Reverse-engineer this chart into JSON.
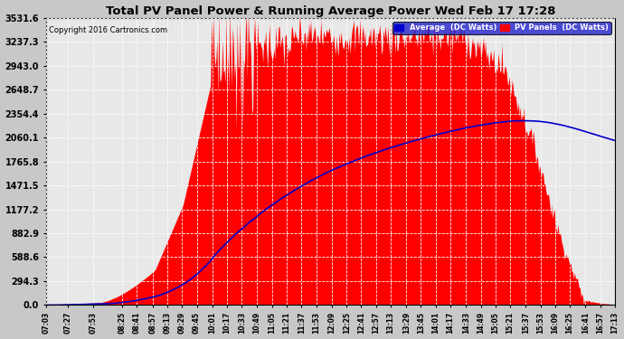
{
  "title": "Total PV Panel Power & Running Average Power Wed Feb 17 17:28",
  "copyright": "Copyright 2016 Cartronics.com",
  "legend_avg": "Average  (DC Watts)",
  "legend_pv": "PV Panels  (DC Watts)",
  "background_color": "#c8c8c8",
  "plot_bg_color": "#e8e8e8",
  "y_ticks": [
    0.0,
    294.3,
    588.6,
    882.9,
    1177.2,
    1471.5,
    1765.8,
    2060.1,
    2354.4,
    2648.7,
    2943.0,
    3237.3,
    3531.6
  ],
  "y_max": 3531.6,
  "pv_color": "#ff0000",
  "avg_color": "#0000cc",
  "grid_color": "#c0c0c0",
  "title_color": "#000000",
  "copyright_color": "#000000",
  "x_tick_labels": [
    "07:03",
    "07:27",
    "07:53",
    "08:25",
    "08:41",
    "08:57",
    "09:13",
    "09:29",
    "09:45",
    "10:01",
    "10:17",
    "10:33",
    "10:49",
    "11:05",
    "11:21",
    "11:37",
    "11:53",
    "12:09",
    "12:25",
    "12:41",
    "12:57",
    "13:13",
    "13:29",
    "13:45",
    "14:01",
    "14:17",
    "14:33",
    "14:49",
    "15:05",
    "15:21",
    "15:37",
    "15:53",
    "16:09",
    "16:25",
    "16:41",
    "16:57",
    "17:13"
  ]
}
